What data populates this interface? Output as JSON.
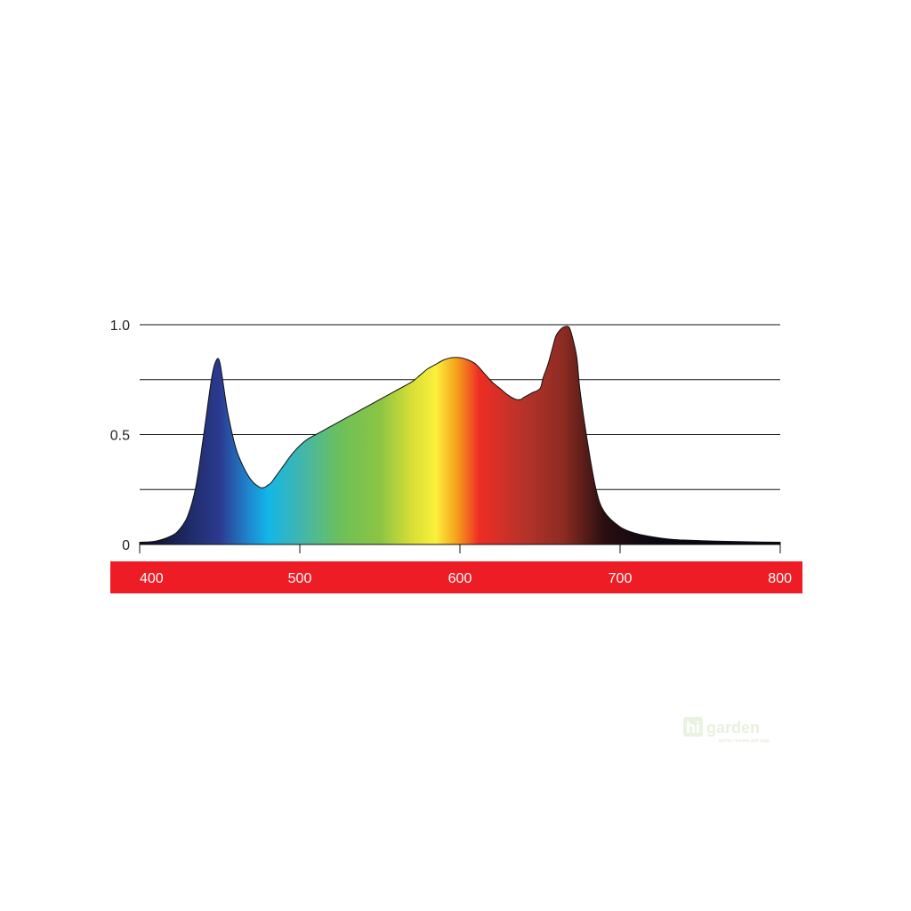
{
  "chart_data": {
    "type": "area",
    "title": "",
    "xlabel": "",
    "ylabel": "",
    "xlim": [
      400,
      800
    ],
    "ylim": [
      0,
      1
    ],
    "grid": true,
    "yticks": [
      {
        "value": 0,
        "label": "0"
      },
      {
        "value": 0.25,
        "label": ""
      },
      {
        "value": 0.5,
        "label": "0.5"
      },
      {
        "value": 0.75,
        "label": ""
      },
      {
        "value": 1.0,
        "label": "1.0"
      }
    ],
    "xticks": [
      {
        "value": 400,
        "label": "400"
      },
      {
        "value": 500,
        "label": "500"
      },
      {
        "value": 600,
        "label": "600"
      },
      {
        "value": 700,
        "label": "700"
      },
      {
        "value": 800,
        "label": "800"
      }
    ],
    "x_band_color": "#ee1c25",
    "series": [
      {
        "x": [
          400,
          410,
          420,
          425,
          430,
          435,
          440,
          445,
          448,
          450,
          452,
          455,
          460,
          465,
          470,
          475,
          478,
          480,
          482,
          485,
          490,
          495,
          500,
          505,
          510,
          515,
          520,
          530,
          540,
          550,
          560,
          570,
          575,
          580,
          585,
          590,
          595,
          600,
          605,
          610,
          615,
          620,
          625,
          630,
          635,
          638,
          640,
          645,
          650,
          652,
          655,
          658,
          660,
          663,
          665,
          668,
          670,
          673,
          675,
          680,
          685,
          690,
          700,
          710,
          720,
          730,
          740,
          760,
          780,
          800
        ],
        "y": [
          0.01,
          0.015,
          0.04,
          0.07,
          0.13,
          0.26,
          0.5,
          0.76,
          0.84,
          0.83,
          0.74,
          0.6,
          0.44,
          0.35,
          0.29,
          0.26,
          0.26,
          0.27,
          0.28,
          0.31,
          0.36,
          0.41,
          0.45,
          0.48,
          0.5,
          0.52,
          0.54,
          0.58,
          0.62,
          0.66,
          0.7,
          0.74,
          0.77,
          0.8,
          0.82,
          0.84,
          0.85,
          0.85,
          0.84,
          0.82,
          0.78,
          0.74,
          0.71,
          0.68,
          0.66,
          0.66,
          0.67,
          0.69,
          0.71,
          0.76,
          0.82,
          0.9,
          0.95,
          0.98,
          0.99,
          0.99,
          0.95,
          0.85,
          0.7,
          0.45,
          0.25,
          0.15,
          0.08,
          0.05,
          0.035,
          0.025,
          0.02,
          0.015,
          0.012,
          0.01
        ]
      }
    ],
    "spectrum_gradient": [
      {
        "x": 400,
        "color": "#0b0a1c"
      },
      {
        "x": 430,
        "color": "#1e2a66"
      },
      {
        "x": 450,
        "color": "#2b3a8f"
      },
      {
        "x": 468,
        "color": "#1f86cf"
      },
      {
        "x": 480,
        "color": "#13b6e8"
      },
      {
        "x": 500,
        "color": "#3fb6b0"
      },
      {
        "x": 525,
        "color": "#6cc05a"
      },
      {
        "x": 550,
        "color": "#8cc443"
      },
      {
        "x": 570,
        "color": "#d7df35"
      },
      {
        "x": 585,
        "color": "#fbef3c"
      },
      {
        "x": 598,
        "color": "#f6a01c"
      },
      {
        "x": 612,
        "color": "#ee2d24"
      },
      {
        "x": 640,
        "color": "#b6332b"
      },
      {
        "x": 665,
        "color": "#8b2b22"
      },
      {
        "x": 690,
        "color": "#2a0e10"
      },
      {
        "x": 720,
        "color": "#0a0812"
      },
      {
        "x": 800,
        "color": "#050510"
      }
    ]
  },
  "watermark": {
    "logo_mark": "hi",
    "logo_word": "garden",
    "tagline": "крутая техника для сада"
  }
}
